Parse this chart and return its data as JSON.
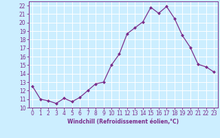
{
  "x": [
    0,
    1,
    2,
    3,
    4,
    5,
    6,
    7,
    8,
    9,
    10,
    11,
    12,
    13,
    14,
    15,
    16,
    17,
    18,
    19,
    20,
    21,
    22,
    23
  ],
  "y": [
    12.5,
    11.0,
    10.8,
    10.5,
    11.1,
    10.7,
    11.2,
    12.0,
    12.8,
    13.0,
    15.0,
    16.3,
    18.7,
    19.4,
    20.1,
    21.8,
    21.1,
    21.9,
    20.5,
    18.5,
    17.1,
    15.1,
    14.8,
    14.2
  ],
  "line_color": "#7b2d8b",
  "marker": "D",
  "marker_size": 2.0,
  "bg_color": "#cceeff",
  "grid_color": "#ffffff",
  "xlabel": "Windchill (Refroidissement éolien,°C)",
  "xlabel_color": "#7b2d8b",
  "tick_color": "#7b2d8b",
  "spine_color": "#7b2d8b",
  "ylim": [
    10,
    22.5
  ],
  "xlim": [
    -0.5,
    23.5
  ],
  "yticks": [
    10,
    11,
    12,
    13,
    14,
    15,
    16,
    17,
    18,
    19,
    20,
    21,
    22
  ],
  "xticks": [
    0,
    1,
    2,
    3,
    4,
    5,
    6,
    7,
    8,
    9,
    10,
    11,
    12,
    13,
    14,
    15,
    16,
    17,
    18,
    19,
    20,
    21,
    22,
    23
  ],
  "tick_fontsize": 5.5,
  "xlabel_fontsize": 5.5
}
